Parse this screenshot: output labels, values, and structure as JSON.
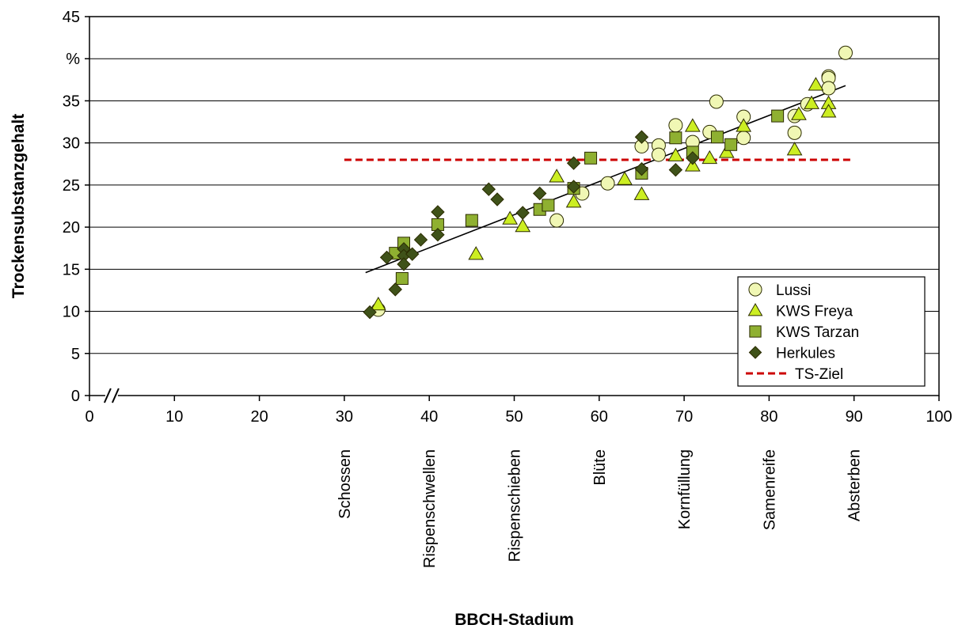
{
  "chart_data": {
    "type": "scatter",
    "xlabel": "BBCH-Stadium",
    "ylabel": "Trockensubstanzgehalt",
    "y_unit_label": "%",
    "xlim": [
      0,
      100
    ],
    "ylim": [
      0,
      45
    ],
    "x_ticks": [
      0,
      10,
      20,
      30,
      40,
      50,
      60,
      70,
      80,
      90,
      100
    ],
    "y_ticks": [
      0,
      5,
      10,
      15,
      20,
      25,
      30,
      35,
      40,
      45
    ],
    "axis_break": true,
    "grid": "horizontal",
    "legend_position": "bottom-right",
    "stage_labels": [
      {
        "x": 30,
        "label": "Schossen"
      },
      {
        "x": 40,
        "label": "Rispenschwellen"
      },
      {
        "x": 50,
        "label": "Rispenschieben"
      },
      {
        "x": 60,
        "label": "Blüte"
      },
      {
        "x": 70,
        "label": "Kornfüllung"
      },
      {
        "x": 80,
        "label": "Samenreife"
      },
      {
        "x": 90,
        "label": "Absterben"
      }
    ],
    "series": [
      {
        "name": "Lussi",
        "marker": "circle",
        "color": "#f0f7b4",
        "points": [
          [
            34,
            10.2
          ],
          [
            55,
            20.8
          ],
          [
            58,
            24
          ],
          [
            61,
            25.2
          ],
          [
            65,
            29.6
          ],
          [
            67,
            29.7
          ],
          [
            67,
            28.6
          ],
          [
            69,
            32.1
          ],
          [
            71,
            30.1
          ],
          [
            73,
            31.3
          ],
          [
            73.8,
            34.9
          ],
          [
            77,
            33.1
          ],
          [
            77,
            30.6
          ],
          [
            83,
            33.2
          ],
          [
            83,
            31.2
          ],
          [
            84.5,
            34.6
          ],
          [
            87,
            37.9
          ],
          [
            87,
            37.7
          ],
          [
            87,
            36.5
          ],
          [
            89,
            40.7
          ]
        ]
      },
      {
        "name": "KWS Freya",
        "marker": "triangle",
        "color": "#ccee22",
        "points": [
          [
            34,
            10.8
          ],
          [
            45.5,
            16.8
          ],
          [
            49.5,
            21
          ],
          [
            51,
            20.1
          ],
          [
            55,
            26
          ],
          [
            57,
            23
          ],
          [
            63,
            25.7
          ],
          [
            65,
            23.9
          ],
          [
            69,
            28.5
          ],
          [
            71,
            32
          ],
          [
            71,
            27.3
          ],
          [
            73,
            28.2
          ],
          [
            75,
            28.9
          ],
          [
            77,
            32
          ],
          [
            83,
            29.2
          ],
          [
            83.5,
            33.4
          ],
          [
            85,
            34.7
          ],
          [
            85.5,
            36.9
          ],
          [
            87,
            34.7
          ],
          [
            87,
            33.7
          ]
        ]
      },
      {
        "name": "KWS Tarzan",
        "marker": "square",
        "color": "#8fb031",
        "points": [
          [
            36,
            16.9
          ],
          [
            37,
            18.1
          ],
          [
            36.8,
            13.9
          ],
          [
            41,
            20.3
          ],
          [
            45,
            20.8
          ],
          [
            53,
            22.1
          ],
          [
            54,
            22.6
          ],
          [
            57,
            24.6
          ],
          [
            59,
            28.2
          ],
          [
            65,
            26.4
          ],
          [
            69,
            30.6
          ],
          [
            71,
            28.9
          ],
          [
            73.9,
            30.7
          ],
          [
            75.5,
            29.8
          ],
          [
            81,
            33.2
          ]
        ]
      },
      {
        "name": "Herkules",
        "marker": "diamond",
        "color": "#3f5219",
        "points": [
          [
            33,
            9.9
          ],
          [
            35,
            16.4
          ],
          [
            36,
            12.6
          ],
          [
            37,
            17.4
          ],
          [
            37,
            16.6
          ],
          [
            37,
            15.6
          ],
          [
            38,
            16.8
          ],
          [
            39,
            18.5
          ],
          [
            41,
            21.8
          ],
          [
            41,
            19.1
          ],
          [
            47,
            24.5
          ],
          [
            48,
            23.3
          ],
          [
            51,
            21.7
          ],
          [
            53,
            24
          ],
          [
            57,
            27.6
          ],
          [
            57,
            24.8
          ],
          [
            65,
            30.7
          ],
          [
            65,
            26.9
          ],
          [
            69,
            26.8
          ],
          [
            71,
            28.2
          ]
        ]
      }
    ],
    "target_line": {
      "name": "TS-Ziel",
      "y": 28,
      "x_start": 30,
      "x_end": 90,
      "color": "#cc0000"
    },
    "trend_line": {
      "x_start": 32.5,
      "y_start": 14.6,
      "x_end": 89,
      "y_end": 36.8,
      "color": "#000000"
    }
  }
}
